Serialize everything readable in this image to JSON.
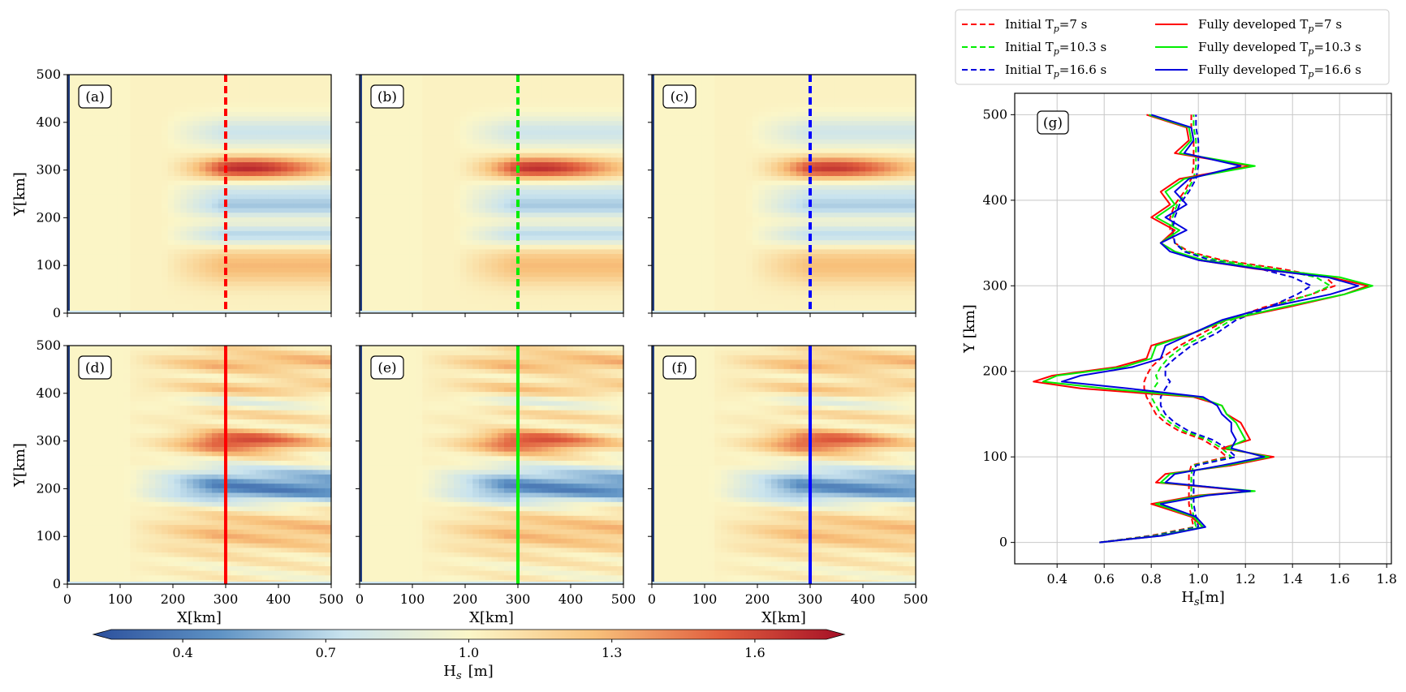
{
  "chart_data": [
    {
      "type": "heatmap",
      "panel_labels": [
        "(a)",
        "(b)",
        "(c)",
        "(d)",
        "(e)",
        "(f)"
      ],
      "xlabel": "X[km]",
      "ylabel": "Y[km]",
      "xlim": [
        0,
        500
      ],
      "ylim": [
        0,
        500
      ],
      "xticks": [
        0,
        100,
        200,
        300,
        400,
        500
      ],
      "yticks": [
        0,
        100,
        200,
        300,
        400,
        500
      ],
      "section_line_x": 300,
      "section_line_colors": [
        "#ff0000",
        "#00ee00",
        "#0000ff"
      ],
      "colorbar": {
        "label": "H",
        "label_sub": "s",
        "label_unit": "[m]",
        "ticks": [
          0.4,
          0.7,
          1.0,
          1.3,
          1.6
        ],
        "range": [
          0.25,
          1.75
        ],
        "colormap": [
          "#2b4f9c",
          "#5e92c4",
          "#c9e3ee",
          "#fbf6c8",
          "#f8c17b",
          "#e15f3e",
          "#a50f26"
        ]
      }
    },
    {
      "type": "line",
      "panel_label": "(g)",
      "xlabel": "H",
      "xlabel_sub": "s",
      "xlabel_unit": "[m]",
      "ylabel": "Y [km]",
      "xlim": [
        0.22,
        1.82
      ],
      "ylim": [
        -25,
        525
      ],
      "xticks": [
        0.4,
        0.6,
        0.8,
        1.0,
        1.2,
        1.4,
        1.6,
        1.8
      ],
      "yticks": [
        0,
        100,
        200,
        300,
        400,
        500
      ],
      "grid": true,
      "legend_position": "above",
      "y": [
        0,
        8,
        18,
        30,
        45,
        55,
        60,
        70,
        80,
        90,
        100,
        110,
        120,
        130,
        140,
        150,
        160,
        170,
        180,
        188,
        195,
        205,
        215,
        230,
        245,
        260,
        275,
        290,
        300,
        310,
        320,
        330,
        340,
        350,
        365,
        380,
        395,
        410,
        425,
        440,
        455,
        470,
        485,
        500
      ],
      "series": [
        {
          "name": "Initial T=7 s",
          "name_parts": [
            "Initial T",
            "p",
            "=7 s"
          ],
          "color": "#ff0000",
          "dash": true,
          "values": [
            0.58,
            0.8,
            0.98,
            0.97,
            0.96,
            0.96,
            0.96,
            0.96,
            0.96,
            0.97,
            1.12,
            1.08,
            1.02,
            0.92,
            0.86,
            0.82,
            0.8,
            0.78,
            0.77,
            0.77,
            0.78,
            0.8,
            0.84,
            0.92,
            1.02,
            1.12,
            1.28,
            1.48,
            1.58,
            1.54,
            1.35,
            1.1,
            0.96,
            0.9,
            0.88,
            0.88,
            0.9,
            0.94,
            0.97,
            0.98,
            0.98,
            0.98,
            0.97,
            0.97
          ]
        },
        {
          "name": "Initial T=10.3 s",
          "name_parts": [
            "Initial T",
            "p",
            "=10.3 s"
          ],
          "color": "#00ee00",
          "dash": true,
          "values": [
            0.58,
            0.81,
            0.99,
            0.98,
            0.97,
            0.97,
            0.97,
            0.97,
            0.97,
            0.98,
            1.14,
            1.1,
            1.04,
            0.94,
            0.88,
            0.84,
            0.82,
            0.8,
            0.81,
            0.83,
            0.82,
            0.84,
            0.87,
            0.94,
            1.05,
            1.14,
            1.3,
            1.48,
            1.56,
            1.5,
            1.32,
            1.08,
            0.95,
            0.9,
            0.89,
            0.89,
            0.91,
            0.95,
            0.98,
            0.99,
            0.99,
            0.99,
            0.98,
            0.98
          ]
        },
        {
          "name": "Initial T=16.6 s",
          "name_parts": [
            "Initial T",
            "p",
            "=16.6 s"
          ],
          "color": "#0000dd",
          "dash": true,
          "values": [
            0.58,
            0.82,
            1.0,
            0.99,
            0.98,
            0.98,
            0.98,
            0.98,
            0.98,
            0.99,
            1.16,
            1.12,
            1.06,
            0.96,
            0.9,
            0.86,
            0.84,
            0.84,
            0.86,
            0.88,
            0.86,
            0.86,
            0.9,
            0.97,
            1.08,
            1.16,
            1.3,
            1.42,
            1.48,
            1.4,
            1.26,
            1.05,
            0.94,
            0.9,
            0.89,
            0.9,
            0.92,
            0.96,
            0.99,
            1.0,
            1.0,
            1.0,
            0.99,
            0.99
          ]
        },
        {
          "name": "Fully developed T=7 s",
          "name_parts": [
            "Fully developed T",
            "p",
            "=7 s"
          ],
          "color": "#ff0000",
          "dash": false,
          "values": [
            0.58,
            0.84,
            1.02,
            0.97,
            0.8,
            1.0,
            1.22,
            0.82,
            0.86,
            1.14,
            1.32,
            1.1,
            1.22,
            1.2,
            1.18,
            1.12,
            1.1,
            0.98,
            0.5,
            0.3,
            0.38,
            0.65,
            0.78,
            0.8,
            0.98,
            1.12,
            1.38,
            1.62,
            1.72,
            1.56,
            1.24,
            1.0,
            0.9,
            0.84,
            0.9,
            0.8,
            0.88,
            0.84,
            0.92,
            1.22,
            0.9,
            0.96,
            0.95,
            0.78
          ]
        },
        {
          "name": "Fully developed T=10.3 s",
          "name_parts": [
            "Fully developed T",
            "p",
            "=10.3 s"
          ],
          "color": "#00ee00",
          "dash": false,
          "values": [
            0.58,
            0.84,
            1.02,
            0.98,
            0.82,
            1.02,
            1.24,
            0.84,
            0.88,
            1.12,
            1.3,
            1.12,
            1.2,
            1.18,
            1.16,
            1.12,
            1.1,
            1.0,
            0.6,
            0.34,
            0.4,
            0.68,
            0.8,
            0.82,
            0.98,
            1.12,
            1.36,
            1.62,
            1.74,
            1.6,
            1.28,
            1.02,
            0.9,
            0.84,
            0.92,
            0.82,
            0.9,
            0.86,
            0.94,
            1.24,
            0.92,
            0.97,
            0.96,
            0.79
          ]
        },
        {
          "name": "Fully developed T=16.6 s",
          "name_parts": [
            "Fully developed T",
            "p",
            "=16.6 s"
          ],
          "color": "#0000dd",
          "dash": false,
          "values": [
            0.58,
            0.85,
            1.03,
            0.99,
            0.84,
            1.04,
            1.22,
            0.86,
            0.9,
            1.1,
            1.28,
            1.14,
            1.16,
            1.14,
            1.14,
            1.1,
            1.08,
            1.02,
            0.7,
            0.42,
            0.5,
            0.72,
            0.84,
            0.86,
            0.98,
            1.1,
            1.3,
            1.56,
            1.68,
            1.55,
            1.25,
            1.0,
            0.88,
            0.84,
            0.95,
            0.86,
            0.95,
            0.9,
            0.96,
            1.18,
            0.94,
            0.98,
            0.97,
            0.8
          ]
        }
      ]
    }
  ]
}
